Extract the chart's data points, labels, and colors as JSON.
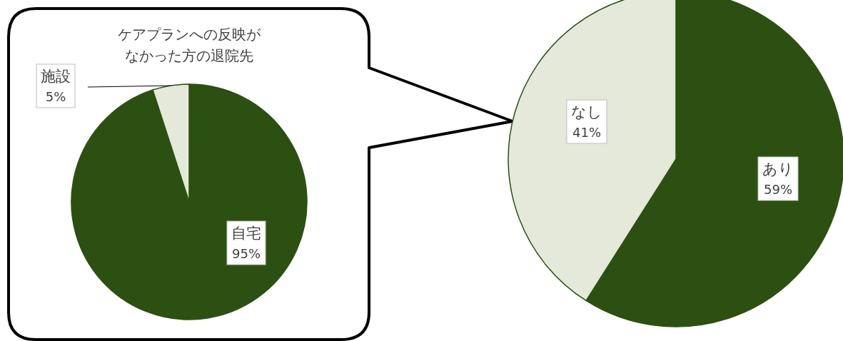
{
  "chart_data": [
    {
      "type": "pie",
      "title": "ケアプランへの反映がなかった方の退院先",
      "categories": [
        "自宅",
        "施設"
      ],
      "values": [
        95,
        5
      ],
      "colors": [
        "#2c5011",
        "#e4e9da"
      ],
      "value_labels": [
        "95%",
        "5%"
      ]
    },
    {
      "type": "pie",
      "categories": [
        "あり",
        "なし"
      ],
      "values": [
        59,
        41
      ],
      "colors": [
        "#2c5011",
        "#e4e9da"
      ],
      "value_labels": [
        "59%",
        "41%"
      ]
    }
  ]
}
